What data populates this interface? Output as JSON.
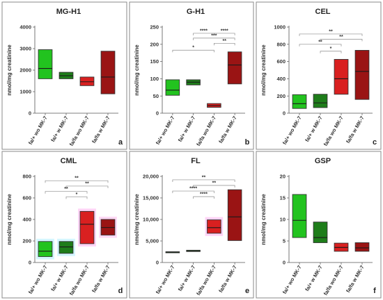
{
  "categories": [
    "fa/+ wo MK-7",
    "fa/+ w MK-7",
    "fa/fa wo MK-7",
    "fa/fa w MK-7"
  ],
  "ylabel": "nmol/mg creatinine",
  "colors": {
    "fa/+ wo MK-7": "#22c31f",
    "fa/+ w MK-7": "#1e7d1a",
    "fa/fa wo MK-7": "#d92020",
    "fa/fa w MK-7": "#9a1414"
  },
  "chart_data": [
    {
      "type": "box",
      "title": "MG-H1",
      "letter": "a",
      "ylabel": "nmol/mg creatinine",
      "categories": [
        "fa/+ wo MK-7",
        "fa/+ w MK-7",
        "fa/fa wo MK-7",
        "fa/fa w MK-7"
      ],
      "ylim": [
        0,
        4000
      ],
      "yticks": [
        "0",
        "1000",
        "2000",
        "3000",
        "4000"
      ],
      "ytick_values": [
        0,
        1000,
        2000,
        3000,
        4000
      ],
      "boxes": [
        {
          "low": 1600,
          "median": 2080,
          "high": 2950
        },
        {
          "low": 1600,
          "median": 1740,
          "high": 1900
        },
        {
          "low": 1280,
          "median": 1460,
          "high": 1680
        },
        {
          "low": 900,
          "median": 1680,
          "high": 2880
        }
      ],
      "significance": []
    },
    {
      "type": "box",
      "title": "G-H1",
      "letter": "b",
      "ylabel": "nmol/mg creatinine",
      "categories": [
        "fa/+ wo MK-7",
        "fa/+ w MK-7",
        "fa/fa wo MK-7",
        "fa/fa w MK-7"
      ],
      "ylim": [
        0,
        250
      ],
      "yticks": [
        "0",
        "50",
        "100",
        "150",
        "200",
        "250"
      ],
      "ytick_values": [
        0,
        50,
        100,
        150,
        200,
        250
      ],
      "boxes": [
        {
          "low": 52,
          "median": 67,
          "high": 97
        },
        {
          "low": 82,
          "median": 90,
          "high": 97
        },
        {
          "low": 17,
          "median": 22,
          "high": 28
        },
        {
          "low": 85,
          "median": 140,
          "high": 178
        }
      ],
      "significance": [
        {
          "from": 2,
          "to": 3,
          "label": "****",
          "y": 232
        },
        {
          "from": 1,
          "to": 2,
          "label": "****",
          "y": 232
        },
        {
          "from": 1,
          "to": 3,
          "label": "***",
          "y": 218
        },
        {
          "from": 2,
          "to": 3,
          "label": "**",
          "y": 203
        },
        {
          "from": 0,
          "to": 2,
          "label": "*",
          "y": 183
        }
      ]
    },
    {
      "type": "box",
      "title": "CEL",
      "letter": "c",
      "ylabel": "nmol/mg creatinine",
      "categories": [
        "fa/+ wo MK-7",
        "fa/+ w MK-7",
        "fa/fa wo MK-7",
        "fa/fa w MK-7"
      ],
      "ylim": [
        0,
        1000
      ],
      "yticks": [
        "0",
        "200",
        "400",
        "600",
        "800",
        "1000"
      ],
      "ytick_values": [
        0,
        200,
        400,
        600,
        800,
        1000
      ],
      "boxes": [
        {
          "low": 55,
          "median": 110,
          "high": 215
        },
        {
          "low": 65,
          "median": 120,
          "high": 220
        },
        {
          "low": 220,
          "median": 400,
          "high": 625
        },
        {
          "low": 160,
          "median": 485,
          "high": 730
        }
      ],
      "significance": [
        {
          "from": 0,
          "to": 3,
          "label": "**",
          "y": 920
        },
        {
          "from": 1,
          "to": 3,
          "label": "**",
          "y": 860
        },
        {
          "from": 0,
          "to": 2,
          "label": "**",
          "y": 800
        },
        {
          "from": 1,
          "to": 2,
          "label": "*",
          "y": 720
        }
      ]
    },
    {
      "type": "box",
      "title": "CML",
      "letter": "d",
      "ylabel": "nmol/mg creatinine",
      "categories": [
        "fa/+ wo MK-7",
        "fa/+ w MK-7",
        "fa/fa wo MK-7",
        "fa/fa w MK-7"
      ],
      "ylim": [
        0,
        800
      ],
      "yticks": [
        "0",
        "200",
        "400",
        "600",
        "800"
      ],
      "ytick_values": [
        0,
        200,
        400,
        600,
        800
      ],
      "boxes": [
        {
          "low": 55,
          "median": 105,
          "high": 195
        },
        {
          "low": 85,
          "median": 145,
          "high": 195
        },
        {
          "low": 175,
          "median": 355,
          "high": 475
        },
        {
          "low": 255,
          "median": 325,
          "high": 400
        }
      ],
      "significance": [
        {
          "from": 0,
          "to": 3,
          "label": "**",
          "y": 760
        },
        {
          "from": 1,
          "to": 3,
          "label": "**",
          "y": 710
        },
        {
          "from": 0,
          "to": 2,
          "label": "**",
          "y": 660
        },
        {
          "from": 1,
          "to": 2,
          "label": "*",
          "y": 610
        }
      ]
    },
    {
      "type": "box",
      "title": "FL",
      "letter": "e",
      "ylabel": "nmol/mg creatinine",
      "categories": [
        "fa/+ wo MK-7",
        "fa/+ w MK-7",
        "fa/fa wo MK-7",
        "fa/fa w MK-7"
      ],
      "ylim": [
        0,
        20000
      ],
      "yticks": [
        "0",
        "5,000",
        "10,000",
        "15,000",
        "20,000"
      ],
      "ytick_values": [
        0,
        5000,
        10000,
        15000,
        20000
      ],
      "boxes": [
        {
          "low": 2250,
          "median": 2400,
          "high": 2500
        },
        {
          "low": 2550,
          "median": 2700,
          "high": 2850
        },
        {
          "low": 6800,
          "median": 8100,
          "high": 9900
        },
        {
          "low": 5100,
          "median": 10600,
          "high": 16900
        }
      ],
      "significance": [
        {
          "from": 0,
          "to": 3,
          "label": "**",
          "y": 19200
        },
        {
          "from": 1,
          "to": 3,
          "label": "**",
          "y": 17900
        },
        {
          "from": 0,
          "to": 2,
          "label": "****",
          "y": 16600
        },
        {
          "from": 1,
          "to": 2,
          "label": "****",
          "y": 15300
        }
      ]
    },
    {
      "type": "box",
      "title": "GSP",
      "letter": "f",
      "ylabel": "nmol/mg creatinine",
      "categories": [
        "fa/+ wo MK-7",
        "fa/+ w MK-7",
        "fa/fa wo MK-7",
        "fa/fa w MK-7"
      ],
      "ylim": [
        0,
        20
      ],
      "yticks": [
        "0",
        "5",
        "10",
        "15",
        "20"
      ],
      "ytick_values": [
        0,
        5,
        10,
        15,
        20
      ],
      "boxes": [
        {
          "low": 5.8,
          "median": 9.8,
          "high": 15.8
        },
        {
          "low": 4.6,
          "median": 5.8,
          "high": 9.4
        },
        {
          "low": 2.6,
          "median": 3.5,
          "high": 4.5
        },
        {
          "low": 2.6,
          "median": 3.4,
          "high": 4.6
        }
      ],
      "significance": []
    }
  ]
}
